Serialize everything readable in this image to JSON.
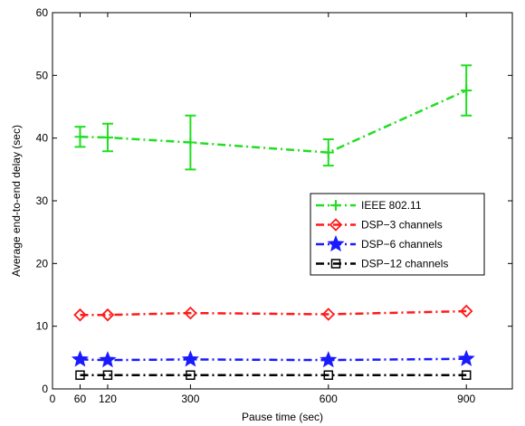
{
  "chart_data": {
    "type": "line",
    "title": "",
    "xlabel": "Pause time (sec)",
    "ylabel": "Average end-to-end delay (sec)",
    "xlim": [
      0,
      1000
    ],
    "ylim": [
      0,
      60
    ],
    "xticks": [
      0,
      60,
      120,
      300,
      600,
      900
    ],
    "xtick_labels": [
      "0",
      "60",
      "120",
      "300",
      "600",
      "900"
    ],
    "yticks": [
      0,
      10,
      20,
      30,
      40,
      50,
      60
    ],
    "ytick_labels": [
      "0",
      "10",
      "20",
      "30",
      "40",
      "50",
      "60"
    ],
    "grid": false,
    "legend_position": "right",
    "x": [
      60,
      120,
      300,
      600,
      900
    ],
    "series": [
      {
        "name": "IEEE 802.11",
        "values": [
          40.2,
          40.1,
          39.3,
          37.7,
          47.6
        ],
        "err_low": [
          38.6,
          37.9,
          35.0,
          35.6,
          43.6
        ],
        "err_high": [
          41.8,
          42.3,
          43.6,
          39.8,
          51.6
        ],
        "color": "#22dd22",
        "marker": "plus"
      },
      {
        "name": "DSP−3 channels",
        "values": [
          11.8,
          11.8,
          12.1,
          11.9,
          12.4
        ],
        "color": "#ff1a1a",
        "marker": "diamond"
      },
      {
        "name": "DSP−6 channels",
        "values": [
          4.7,
          4.6,
          4.7,
          4.6,
          4.8
        ],
        "color": "#1a1aff",
        "marker": "star"
      },
      {
        "name": "DSP−12 channels",
        "values": [
          2.2,
          2.2,
          2.2,
          2.2,
          2.2
        ],
        "color": "#000000",
        "marker": "square"
      }
    ]
  }
}
